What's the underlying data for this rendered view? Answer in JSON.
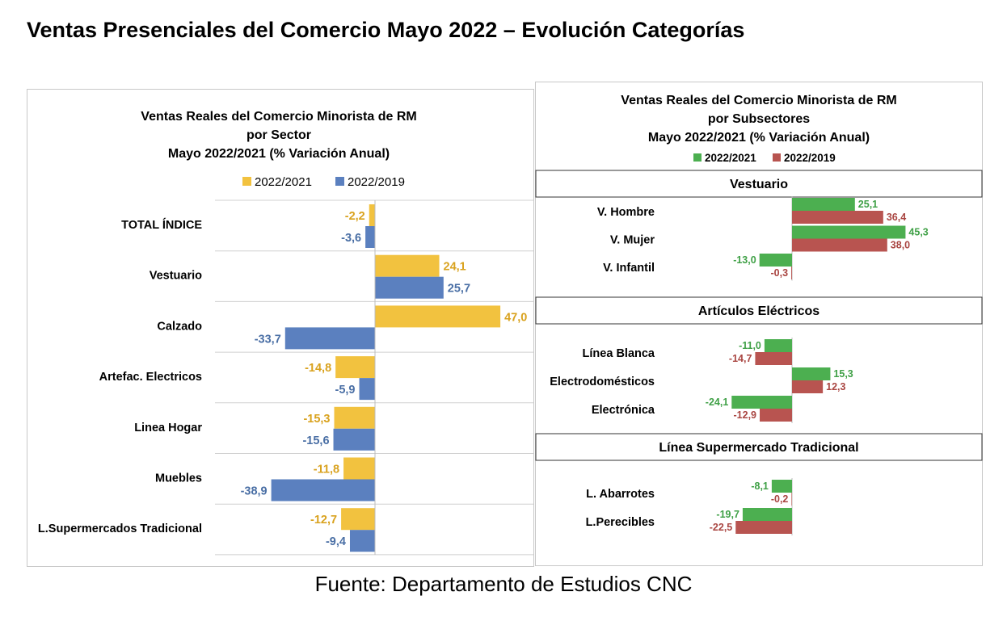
{
  "title": "Ventas Presenciales del Comercio Mayo 2022 – Evolución Categorías",
  "source": "Fuente: Departamento de Estudios CNC",
  "colors": {
    "left_2022_2021": "#F2C23F",
    "left_2022_2019": "#5B80BF",
    "right_2022_2021": "#4CAF50",
    "right_2022_2019": "#B85450",
    "label_2022_2021": "#D9A21E",
    "label_2022_2019": "#4A6FA5",
    "rlabel_2022_2021": "#3FA046",
    "rlabel_2022_2019": "#A94541"
  },
  "chart_data": [
    {
      "type": "bar",
      "orientation": "horizontal",
      "title": [
        "Ventas Reales del Comercio Minorista de RM",
        "por Sector",
        "Mayo 2022/2021 (% Variación Anual)"
      ],
      "legend_position": "top",
      "grid": true,
      "categories": [
        "TOTAL ÍNDICE",
        "Vestuario",
        "Calzado",
        "Artefac. Electricos",
        "Linea Hogar",
        "Muebles",
        "L.Supermercados Tradicional"
      ],
      "series": [
        {
          "name": "2022/2021",
          "values": [
            -2.2,
            24.1,
            47.0,
            -14.8,
            -15.3,
            -11.8,
            -12.7
          ],
          "labels": [
            "-2,2",
            "24,1",
            "47,0",
            "-14,8",
            "-15,3",
            "-11,8",
            "-12,7"
          ]
        },
        {
          "name": "2022/2019",
          "values": [
            -3.6,
            25.7,
            -33.7,
            -5.9,
            -15.6,
            -38.9,
            -9.4
          ],
          "labels": [
            "-3,6",
            "25,7",
            "-33,7",
            "-5,9",
            "-15,6",
            "-38,9",
            "-9,4"
          ]
        }
      ]
    },
    {
      "type": "bar",
      "orientation": "horizontal",
      "title": [
        "Ventas Reales del Comercio Minorista de RM",
        "por Subsectores",
        "Mayo 2022/2021 (% Variación Anual)"
      ],
      "legend_position": "top",
      "series_names": [
        "2022/2021",
        "2022/2019"
      ],
      "groups": [
        {
          "name": "Vestuario",
          "categories": [
            "V. Hombre",
            "V. Mujer",
            "V. Infantil"
          ],
          "series": [
            {
              "values": [
                25.1,
                45.3,
                -13.0
              ],
              "labels": [
                "25,1",
                "45,3",
                "-13,0"
              ]
            },
            {
              "values": [
                36.4,
                38.0,
                -0.3
              ],
              "labels": [
                "36,4",
                "38,0",
                "-0,3"
              ]
            }
          ]
        },
        {
          "name": "Artículos Eléctricos",
          "categories": [
            "Línea Blanca",
            "Electrodomésticos",
            "Electrónica"
          ],
          "series": [
            {
              "values": [
                -11.0,
                15.3,
                -24.1
              ],
              "labels": [
                "-11,0",
                "15,3",
                "-24,1"
              ]
            },
            {
              "values": [
                -14.7,
                12.3,
                -12.9
              ],
              "labels": [
                "-14,7",
                "12,3",
                "-12,9"
              ]
            }
          ]
        },
        {
          "name": "Línea Supermercado Tradicional",
          "categories": [
            "L. Abarrotes",
            "L.Perecibles"
          ],
          "series": [
            {
              "values": [
                -8.1,
                -19.7
              ],
              "labels": [
                "-8,1",
                "-19,7"
              ]
            },
            {
              "values": [
                -0.2,
                -22.5
              ],
              "labels": [
                "-0,2",
                "-22,5"
              ]
            }
          ]
        }
      ]
    }
  ]
}
